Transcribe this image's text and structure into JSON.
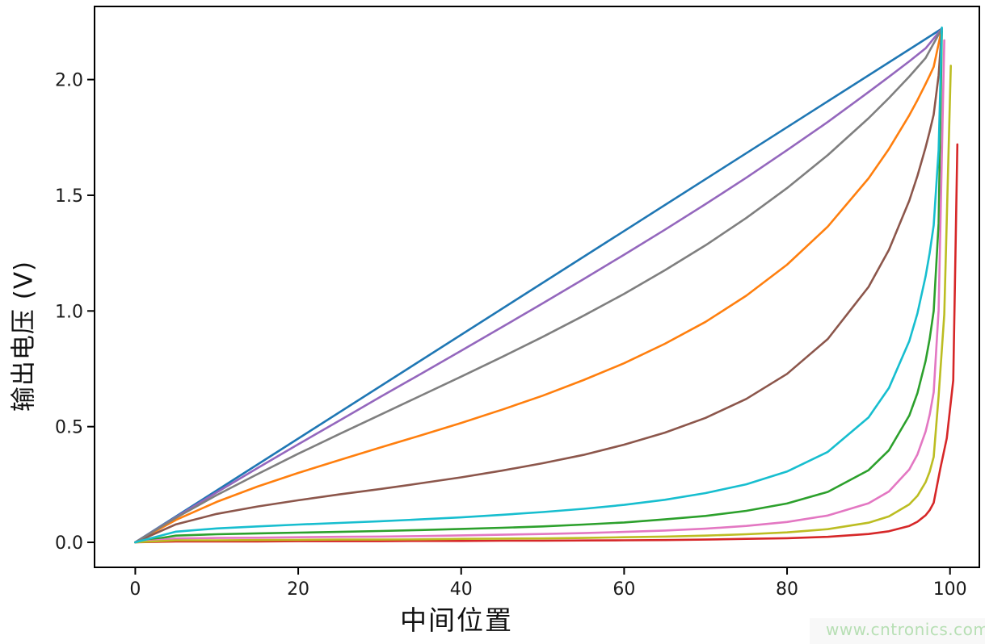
{
  "page": {
    "background": "#ffffff"
  },
  "watermark": {
    "text": "www.cntronics.com",
    "color": "#b7dfb4",
    "band_color": "#f8f8f8"
  },
  "chart_data": {
    "type": "line",
    "title": "",
    "xlabel": "中间位置",
    "ylabel": "输出电压 (V)",
    "xlim": [
      -5.0,
      103.6
    ],
    "ylim": [
      -0.108,
      2.316
    ],
    "grid": false,
    "legend": "none",
    "axis_color": "#000000",
    "tick_label_color": "#1a1a1a",
    "xticks": {
      "values": [
        0,
        20,
        40,
        60,
        80,
        100
      ],
      "labels": [
        "0",
        "20",
        "40",
        "60",
        "80",
        "100"
      ]
    },
    "yticks": {
      "values": [
        0,
        0.5,
        1.0,
        1.5,
        2.0
      ],
      "labels": [
        "0.0",
        "0.5",
        "1.0",
        "1.5",
        "2.0"
      ]
    },
    "series": [
      {
        "name": "C0-blue",
        "color": "#1f77b4",
        "points": [
          [
            0,
            0
          ],
          [
            99,
            2.22
          ]
        ]
      },
      {
        "name": "C1-orange",
        "color": "#ff7f0e",
        "points": [
          [
            0,
            0
          ],
          [
            5,
            0.097
          ],
          [
            10,
            0.175
          ],
          [
            15,
            0.241
          ],
          [
            20,
            0.3
          ],
          [
            25,
            0.355
          ],
          [
            30,
            0.409
          ],
          [
            35,
            0.462
          ],
          [
            40,
            0.516
          ],
          [
            45,
            0.573
          ],
          [
            50,
            0.634
          ],
          [
            55,
            0.701
          ],
          [
            60,
            0.774
          ],
          [
            65,
            0.858
          ],
          [
            70,
            0.953
          ],
          [
            75,
            1.066
          ],
          [
            80,
            1.2
          ],
          [
            85,
            1.365
          ],
          [
            90,
            1.573
          ],
          [
            92.5,
            1.7
          ],
          [
            95,
            1.846
          ],
          [
            96,
            1.911
          ],
          [
            97,
            1.981
          ],
          [
            97.5,
            2.017
          ],
          [
            98,
            2.055
          ],
          [
            99,
            2.22
          ]
        ]
      },
      {
        "name": "C2-green",
        "color": "#2ca02c",
        "points": [
          [
            0,
            0
          ],
          [
            5,
            0.029
          ],
          [
            10,
            0.035
          ],
          [
            15,
            0.039
          ],
          [
            20,
            0.042
          ],
          [
            25,
            0.045
          ],
          [
            30,
            0.049
          ],
          [
            35,
            0.053
          ],
          [
            40,
            0.058
          ],
          [
            45,
            0.063
          ],
          [
            50,
            0.069
          ],
          [
            55,
            0.077
          ],
          [
            60,
            0.086
          ],
          [
            65,
            0.099
          ],
          [
            70,
            0.114
          ],
          [
            75,
            0.136
          ],
          [
            80,
            0.168
          ],
          [
            85,
            0.218
          ],
          [
            90,
            0.312
          ],
          [
            92.5,
            0.398
          ],
          [
            95,
            0.548
          ],
          [
            96,
            0.645
          ],
          [
            97,
            0.784
          ],
          [
            97.5,
            0.879
          ],
          [
            98,
            1.0
          ],
          [
            98.6,
            1.379
          ],
          [
            99,
            2.21
          ]
        ]
      },
      {
        "name": "C3-red",
        "color": "#d62728",
        "points": [
          [
            0,
            0
          ],
          [
            5,
            0.004
          ],
          [
            10,
            0.004
          ],
          [
            15,
            0.004
          ],
          [
            20,
            0.005
          ],
          [
            25,
            0.005
          ],
          [
            30,
            0.005
          ],
          [
            35,
            0.006
          ],
          [
            40,
            0.006
          ],
          [
            45,
            0.007
          ],
          [
            50,
            0.007
          ],
          [
            55,
            0.008
          ],
          [
            60,
            0.009
          ],
          [
            65,
            0.01
          ],
          [
            70,
            0.012
          ],
          [
            75,
            0.015
          ],
          [
            80,
            0.018
          ],
          [
            85,
            0.024
          ],
          [
            90,
            0.036
          ],
          [
            92.5,
            0.048
          ],
          [
            95,
            0.071
          ],
          [
            96,
            0.089
          ],
          [
            97,
            0.117
          ],
          [
            97.5,
            0.139
          ],
          [
            98,
            0.171
          ],
          [
            98.8,
            0.317
          ],
          [
            99.6,
            0.45
          ],
          [
            100.4,
            0.7
          ],
          [
            100.9,
            1.72
          ]
        ]
      },
      {
        "name": "C4-purple",
        "color": "#9467bd",
        "points": [
          [
            0,
            0
          ],
          [
            5,
            0.109
          ],
          [
            10,
            0.216
          ],
          [
            15,
            0.321
          ],
          [
            20,
            0.424
          ],
          [
            25,
            0.525
          ],
          [
            30,
            0.627
          ],
          [
            35,
            0.727
          ],
          [
            40,
            0.828
          ],
          [
            45,
            0.93
          ],
          [
            50,
            1.033
          ],
          [
            55,
            1.137
          ],
          [
            60,
            1.243
          ],
          [
            65,
            1.351
          ],
          [
            70,
            1.462
          ],
          [
            75,
            1.576
          ],
          [
            80,
            1.695
          ],
          [
            85,
            1.817
          ],
          [
            90,
            1.946
          ],
          [
            92.5,
            2.012
          ],
          [
            95,
            2.079
          ],
          [
            97,
            2.135
          ],
          [
            99,
            2.22
          ]
        ]
      },
      {
        "name": "C5-brown",
        "color": "#8c564b",
        "points": [
          [
            0,
            0
          ],
          [
            5,
            0.078
          ],
          [
            10,
            0.123
          ],
          [
            15,
            0.155
          ],
          [
            20,
            0.182
          ],
          [
            25,
            0.207
          ],
          [
            30,
            0.23
          ],
          [
            35,
            0.255
          ],
          [
            40,
            0.281
          ],
          [
            45,
            0.31
          ],
          [
            50,
            0.342
          ],
          [
            55,
            0.378
          ],
          [
            60,
            0.422
          ],
          [
            65,
            0.474
          ],
          [
            70,
            0.538
          ],
          [
            75,
            0.62
          ],
          [
            80,
            0.728
          ],
          [
            85,
            0.879
          ],
          [
            90,
            1.104
          ],
          [
            92.5,
            1.264
          ],
          [
            95,
            1.477
          ],
          [
            96,
            1.584
          ],
          [
            97,
            1.707
          ],
          [
            97.5,
            1.775
          ],
          [
            98,
            1.849
          ],
          [
            98.6,
            2.018
          ],
          [
            99,
            2.22
          ]
        ]
      },
      {
        "name": "C6-pink",
        "color": "#e377c2",
        "points": [
          [
            0,
            0
          ],
          [
            5,
            0.017
          ],
          [
            10,
            0.019
          ],
          [
            15,
            0.02
          ],
          [
            20,
            0.022
          ],
          [
            25,
            0.024
          ],
          [
            30,
            0.025
          ],
          [
            35,
            0.027
          ],
          [
            40,
            0.03
          ],
          [
            45,
            0.033
          ],
          [
            50,
            0.036
          ],
          [
            55,
            0.04
          ],
          [
            60,
            0.045
          ],
          [
            65,
            0.051
          ],
          [
            70,
            0.059
          ],
          [
            75,
            0.071
          ],
          [
            80,
            0.088
          ],
          [
            85,
            0.116
          ],
          [
            90,
            0.169
          ],
          [
            92.5,
            0.22
          ],
          [
            95,
            0.315
          ],
          [
            96,
            0.38
          ],
          [
            97,
            0.479
          ],
          [
            97.5,
            0.551
          ],
          [
            98,
            0.649
          ],
          [
            98.6,
            1.004
          ],
          [
            99.3,
            2.17
          ]
        ]
      },
      {
        "name": "C7-gray",
        "color": "#7f7f7f",
        "points": [
          [
            0,
            0
          ],
          [
            5,
            0.106
          ],
          [
            10,
            0.204
          ],
          [
            15,
            0.295
          ],
          [
            20,
            0.383
          ],
          [
            25,
            0.467
          ],
          [
            30,
            0.55
          ],
          [
            35,
            0.633
          ],
          [
            40,
            0.716
          ],
          [
            45,
            0.801
          ],
          [
            50,
            0.888
          ],
          [
            55,
            0.979
          ],
          [
            60,
            1.074
          ],
          [
            65,
            1.176
          ],
          [
            70,
            1.284
          ],
          [
            75,
            1.402
          ],
          [
            80,
            1.531
          ],
          [
            85,
            1.674
          ],
          [
            90,
            1.833
          ],
          [
            92.5,
            1.92
          ],
          [
            95,
            2.013
          ],
          [
            97,
            2.093
          ],
          [
            99,
            2.22
          ]
        ]
      },
      {
        "name": "C8-olive",
        "color": "#bcbd22",
        "points": [
          [
            0,
            0
          ],
          [
            5,
            0.009
          ],
          [
            10,
            0.009
          ],
          [
            15,
            0.01
          ],
          [
            20,
            0.011
          ],
          [
            25,
            0.012
          ],
          [
            30,
            0.012
          ],
          [
            35,
            0.013
          ],
          [
            40,
            0.015
          ],
          [
            45,
            0.016
          ],
          [
            50,
            0.017
          ],
          [
            55,
            0.019
          ],
          [
            60,
            0.022
          ],
          [
            65,
            0.025
          ],
          [
            70,
            0.029
          ],
          [
            75,
            0.035
          ],
          [
            80,
            0.043
          ],
          [
            85,
            0.057
          ],
          [
            90,
            0.085
          ],
          [
            92.5,
            0.112
          ],
          [
            95,
            0.164
          ],
          [
            96,
            0.201
          ],
          [
            97,
            0.26
          ],
          [
            97.5,
            0.305
          ],
          [
            98,
            0.369
          ],
          [
            98.6,
            0.632
          ],
          [
            99.3,
            0.985
          ],
          [
            100.1,
            2.06
          ]
        ]
      },
      {
        "name": "C9-cyan",
        "color": "#17becf",
        "points": [
          [
            0,
            0
          ],
          [
            5,
            0.046
          ],
          [
            10,
            0.06
          ],
          [
            15,
            0.069
          ],
          [
            20,
            0.077
          ],
          [
            25,
            0.084
          ],
          [
            30,
            0.091
          ],
          [
            35,
            0.099
          ],
          [
            40,
            0.108
          ],
          [
            45,
            0.119
          ],
          [
            50,
            0.131
          ],
          [
            55,
            0.145
          ],
          [
            60,
            0.162
          ],
          [
            65,
            0.184
          ],
          [
            70,
            0.213
          ],
          [
            75,
            0.251
          ],
          [
            80,
            0.306
          ],
          [
            85,
            0.391
          ],
          [
            90,
            0.54
          ],
          [
            92.5,
            0.667
          ],
          [
            95,
            0.87
          ],
          [
            96,
            0.99
          ],
          [
            97,
            1.15
          ],
          [
            97.5,
            1.25
          ],
          [
            98,
            1.37
          ],
          [
            98.6,
            1.694
          ],
          [
            99,
            2.225
          ]
        ]
      }
    ]
  }
}
